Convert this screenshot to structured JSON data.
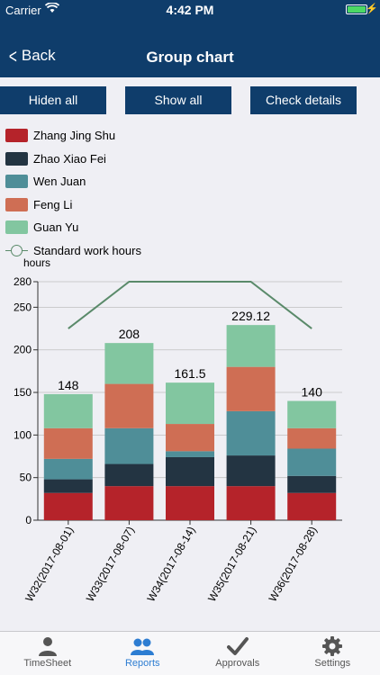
{
  "status_bar": {
    "carrier": "Carrier",
    "time": "4:42 PM"
  },
  "nav": {
    "back_label": "Back",
    "title": "Group chart"
  },
  "buttons": {
    "hide_all": "Hiden all",
    "show_all": "Show all",
    "check_details": "Check details"
  },
  "legend": {
    "items": [
      {
        "name": "Zhang Jing Shu",
        "color": "#b5232a"
      },
      {
        "name": "Zhao Xiao Fei",
        "color": "#233442"
      },
      {
        "name": "Wen Juan",
        "color": "#4f8e98"
      },
      {
        "name": "Feng Li",
        "color": "#cf6e54"
      },
      {
        "name": "Guan Yu",
        "color": "#82c6a0"
      }
    ],
    "line_item": {
      "name": "Standard work hours",
      "color": "#5a8a6a"
    }
  },
  "chart_data": {
    "type": "bar",
    "stacked": true,
    "unit_label": "hours",
    "ylim": [
      0,
      280
    ],
    "yticks": [
      0,
      50,
      100,
      150,
      200,
      250,
      280
    ],
    "categories": [
      "W32(2017-08-01)",
      "W33(2017-08-07)",
      "W34(2017-08-14)",
      "W35(2017-08-21)",
      "W36(2017-08-28)"
    ],
    "totals": [
      "148",
      "208",
      "161.5",
      "229.12",
      "140"
    ],
    "series": [
      {
        "name": "Zhang Jing Shu",
        "color": "#b5232a",
        "values": [
          32,
          40,
          40,
          40,
          32
        ]
      },
      {
        "name": "Zhao Xiao Fei",
        "color": "#233442",
        "values": [
          16,
          26,
          34,
          36,
          20
        ]
      },
      {
        "name": "Wen Juan",
        "color": "#4f8e98",
        "values": [
          24,
          42,
          7,
          52,
          32
        ]
      },
      {
        "name": "Feng Li",
        "color": "#cf6e54",
        "values": [
          36,
          52,
          32,
          52,
          24
        ]
      },
      {
        "name": "Guan Yu",
        "color": "#82c6a0",
        "values": [
          40,
          48,
          48.5,
          49.12,
          32
        ]
      }
    ],
    "line": {
      "name": "Standard work hours",
      "color": "#5a8a6a",
      "values": [
        225,
        280,
        280,
        280,
        225
      ]
    }
  },
  "tabs": [
    {
      "label": "TimeSheet",
      "icon": "person-icon",
      "active": false
    },
    {
      "label": "Reports",
      "icon": "group-icon",
      "active": true
    },
    {
      "label": "Approvals",
      "icon": "checkmark-icon",
      "active": false
    },
    {
      "label": "Settings",
      "icon": "gear-icon",
      "active": false
    }
  ],
  "colors": {
    "nav": "#0f3d6b",
    "active_tab": "#2d7dd2",
    "battery": "#4cd964"
  }
}
